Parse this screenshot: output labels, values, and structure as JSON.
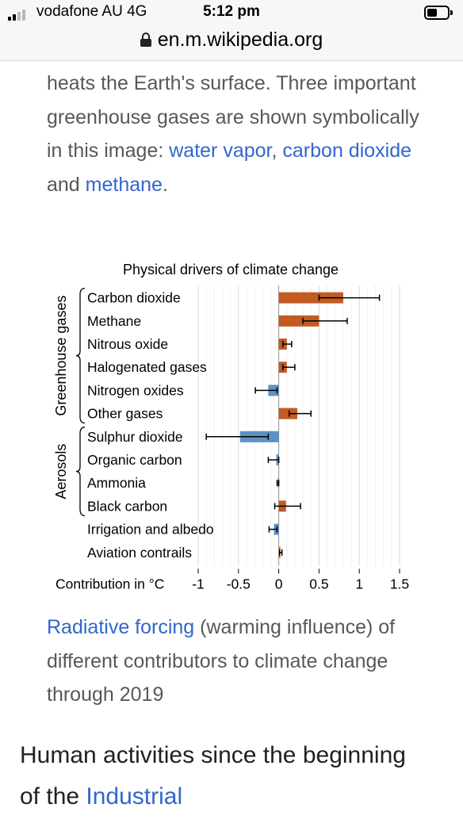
{
  "status_bar": {
    "carrier": "vodafone AU  4G",
    "time": "5:12 pm"
  },
  "url_bar": {
    "url": "en.m.wikipedia.org"
  },
  "intro": {
    "text_1": "heats the Earth's surface. Three important greenhouse gases are shown symbolically in this image: ",
    "link_water": "water vapor",
    "sep_1": ", ",
    "link_co2": "carbon dioxide",
    "sep_2": " and ",
    "link_methane": "methane",
    "end": "."
  },
  "chart_data": {
    "type": "bar",
    "orientation": "horizontal",
    "title": "Physical drivers of climate change",
    "xlabel": "Contribution in °C",
    "xlim": [
      -1,
      1.5
    ],
    "xticks": [
      "-1",
      "-0.5",
      "0",
      "0.5",
      "1",
      "1.5"
    ],
    "grid": true,
    "groups": [
      {
        "name": "Greenhouse gases",
        "from": 0,
        "to": 5
      },
      {
        "name": "Aerosols",
        "from": 6,
        "to": 9
      }
    ],
    "categories": [
      "Carbon dioxide",
      "Methane",
      "Nitrous oxide",
      "Halogenated gases",
      "Nitrogen oxides",
      "Other gases",
      "Sulphur dioxide",
      "Organic carbon",
      "Ammonia",
      "Black carbon",
      "Irrigation and albedo",
      "Aviation contrails"
    ],
    "values": [
      0.8,
      0.5,
      0.1,
      0.1,
      -0.13,
      0.23,
      -0.48,
      -0.03,
      -0.01,
      0.09,
      -0.06,
      0.02
    ],
    "error_low": [
      0.5,
      0.3,
      0.05,
      0.05,
      -0.29,
      0.13,
      -0.9,
      -0.13,
      -0.02,
      -0.05,
      -0.12,
      0.01
    ],
    "error_high": [
      1.25,
      0.85,
      0.16,
      0.2,
      -0.02,
      0.4,
      -0.13,
      0.0,
      0.0,
      0.27,
      -0.02,
      0.04
    ],
    "colors": {
      "positive": "#c25b22",
      "negative": "#5b91c6"
    }
  },
  "caption": {
    "link": "Radiative forcing",
    "text": " (warming influence) of different contributors to climate change through 2019"
  },
  "body": {
    "text": "Human activities since the beginning of the ",
    "link": "Industrial"
  }
}
